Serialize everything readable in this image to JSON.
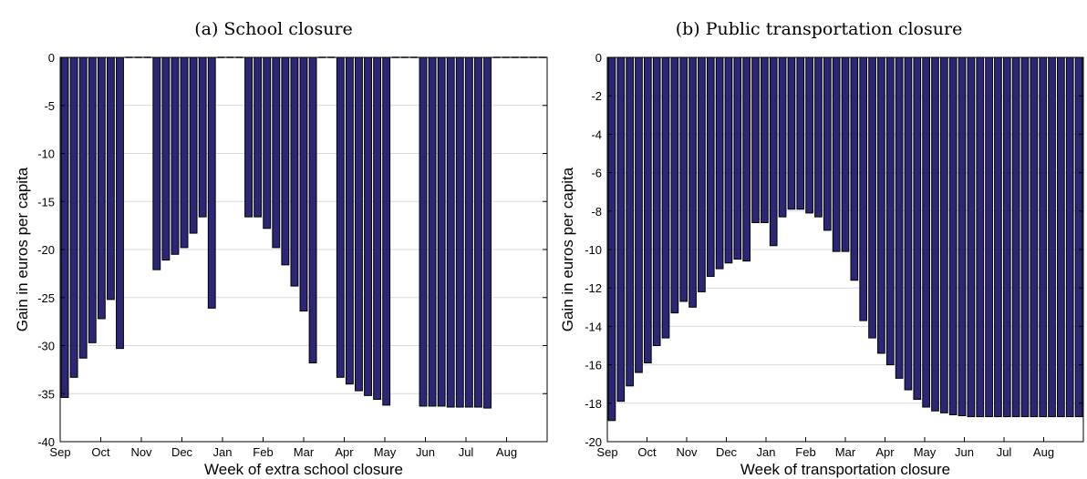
{
  "chart_data": [
    {
      "type": "bar",
      "title": "(a) School closure",
      "xlabel": "Week of extra school closure",
      "ylabel": "Gain in euros per capita",
      "ylim": [
        -40,
        0
      ],
      "yticks": [
        0,
        -5,
        -10,
        -15,
        -20,
        -25,
        -30,
        -35,
        -40
      ],
      "xtick_labels": [
        "Sep",
        "Oct",
        "Nov",
        "Dec",
        "Jan",
        "Feb",
        "Mar",
        "Apr",
        "May",
        "Jun",
        "Jul",
        "Aug"
      ],
      "grid": true,
      "values": [
        -35.4,
        -33.3,
        -31.3,
        -29.7,
        -27.2,
        -25.2,
        -30.3,
        0,
        0,
        0,
        -22.1,
        -21.1,
        -20.5,
        -19.8,
        -18.3,
        -16.6,
        -26.1,
        0,
        0,
        0,
        -16.6,
        -16.6,
        -17.8,
        -19.8,
        -21.6,
        -23.8,
        -26.4,
        -31.8,
        0,
        0,
        -33.3,
        -34.0,
        -34.7,
        -35.2,
        -35.6,
        -36.2,
        0,
        0,
        0,
        -36.3,
        -36.3,
        -36.3,
        -36.4,
        -36.4,
        -36.4,
        -36.4,
        -36.5,
        0,
        0,
        0,
        0,
        0,
        0
      ]
    },
    {
      "type": "bar",
      "title": "(b) Public transportation closure",
      "xlabel": "Week of transportation closure",
      "ylabel": "Gain in euros per capita",
      "ylim": [
        -20,
        0
      ],
      "yticks": [
        0,
        -2,
        -4,
        -6,
        -8,
        -10,
        -12,
        -14,
        -16,
        -18,
        -20
      ],
      "xtick_labels": [
        "Sep",
        "Oct",
        "Nov",
        "Dec",
        "Jan",
        "Feb",
        "Mar",
        "Apr",
        "May",
        "Jun",
        "Jul",
        "Aug"
      ],
      "grid": true,
      "values": [
        -18.9,
        -17.9,
        -17.1,
        -16.4,
        -15.9,
        -15.0,
        -14.6,
        -13.3,
        -12.7,
        -13.0,
        -12.2,
        -11.4,
        -11.0,
        -10.7,
        -10.5,
        -10.6,
        -8.6,
        -8.6,
        -9.8,
        -8.3,
        -7.9,
        -7.9,
        -8.1,
        -8.3,
        -9.0,
        -10.1,
        -10.1,
        -11.6,
        -13.7,
        -14.6,
        -15.4,
        -16.0,
        -16.7,
        -17.3,
        -17.8,
        -18.2,
        -18.4,
        -18.5,
        -18.6,
        -18.65,
        -18.7,
        -18.7,
        -18.7,
        -18.7,
        -18.7,
        -18.7,
        -18.7,
        -18.7,
        -18.7,
        -18.7,
        -18.7,
        -18.7,
        -18.7
      ]
    }
  ]
}
